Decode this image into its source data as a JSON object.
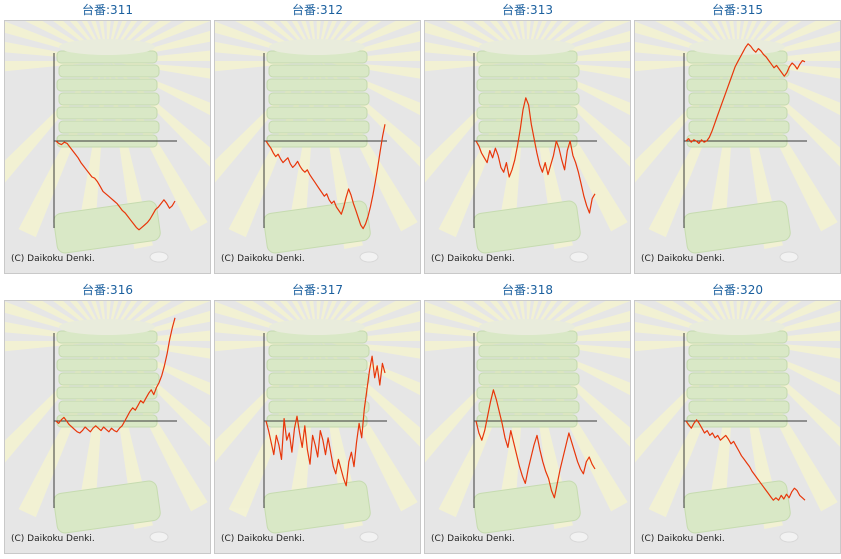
{
  "copyright": "(C) Daikoku Denki.",
  "colors": {
    "line": "#e8360a",
    "axis": "#3a3a3a",
    "title": "#1a5f9e",
    "background": "#e6e6e6"
  },
  "charts": [
    {
      "title": "台番:311"
    },
    {
      "title": "台番:312"
    },
    {
      "title": "台番:313"
    },
    {
      "title": "台番:315"
    },
    {
      "title": "台番:316"
    },
    {
      "title": "台番:317"
    },
    {
      "title": "台番:318"
    },
    {
      "title": "台番:320"
    }
  ],
  "chart_data": [
    {
      "type": "line",
      "title": "台番:311",
      "grid": false,
      "y": [
        0,
        -2,
        -3,
        -1,
        -2,
        -5,
        -8,
        -11,
        -14,
        -18,
        -21,
        -24,
        -27,
        -30,
        -31,
        -34,
        -38,
        -42,
        -44,
        -46,
        -48,
        -50,
        -52,
        -55,
        -58,
        -60,
        -63,
        -66,
        -69,
        -72,
        -74,
        -72,
        -70,
        -68,
        -65,
        -61,
        -57,
        -55,
        -52,
        -49,
        -52,
        -56,
        -54,
        -50
      ]
    },
    {
      "type": "line",
      "title": "台番:312",
      "grid": false,
      "y": [
        0,
        -3,
        -6,
        -10,
        -13,
        -11,
        -15,
        -18,
        -16,
        -14,
        -19,
        -22,
        -20,
        -17,
        -21,
        -24,
        -26,
        -24,
        -28,
        -31,
        -34,
        -37,
        -40,
        -43,
        -46,
        -44,
        -49,
        -52,
        -50,
        -55,
        -58,
        -61,
        -55,
        -47,
        -40,
        -45,
        -52,
        -58,
        -64,
        -70,
        -73,
        -69,
        -63,
        -55,
        -45,
        -34,
        -22,
        -9,
        4,
        14
      ]
    },
    {
      "type": "line",
      "title": "台番:313",
      "grid": false,
      "y": [
        0,
        -4,
        -10,
        -14,
        -18,
        -8,
        -14,
        -6,
        -12,
        -22,
        -26,
        -18,
        -30,
        -24,
        -16,
        -4,
        10,
        26,
        36,
        30,
        14,
        2,
        -10,
        -20,
        -26,
        -18,
        -28,
        -20,
        -12,
        0,
        -6,
        -16,
        -24,
        -8,
        0,
        -12,
        -18,
        -26,
        -36,
        -46,
        -54,
        -60,
        -48,
        -44
      ]
    },
    {
      "type": "line",
      "title": "台番:315",
      "grid": false,
      "y": [
        0,
        2,
        -1,
        1,
        0,
        -2,
        1,
        -1,
        0,
        3,
        8,
        14,
        20,
        26,
        32,
        38,
        44,
        50,
        56,
        62,
        66,
        70,
        74,
        78,
        81,
        79,
        76,
        74,
        77,
        75,
        72,
        70,
        67,
        64,
        61,
        63,
        60,
        57,
        54,
        57,
        62,
        65,
        63,
        60,
        64,
        67,
        66
      ]
    },
    {
      "type": "line",
      "title": "台番:316",
      "grid": false,
      "y": [
        0,
        -2,
        1,
        3,
        0,
        -3,
        -5,
        -7,
        -9,
        -10,
        -8,
        -5,
        -7,
        -9,
        -6,
        -4,
        -6,
        -8,
        -5,
        -7,
        -9,
        -6,
        -8,
        -9,
        -6,
        -4,
        0,
        4,
        8,
        11,
        9,
        13,
        17,
        15,
        19,
        23,
        26,
        22,
        28,
        32,
        38,
        46,
        56,
        68,
        78,
        86
      ]
    },
    {
      "type": "line",
      "title": "台番:317",
      "grid": false,
      "y": [
        0,
        -8,
        -18,
        -28,
        -12,
        -20,
        -32,
        2,
        -16,
        -10,
        -26,
        -6,
        4,
        -10,
        -22,
        -4,
        -24,
        -36,
        -12,
        -20,
        -30,
        -8,
        -16,
        -28,
        -14,
        -26,
        -38,
        -44,
        -32,
        -40,
        -48,
        -54,
        -34,
        -26,
        -38,
        -18,
        -2,
        -14,
        10,
        26,
        42,
        54,
        36,
        46,
        30,
        48,
        40
      ]
    },
    {
      "type": "line",
      "title": "台番:318",
      "grid": false,
      "y": [
        0,
        -10,
        -16,
        -8,
        4,
        16,
        26,
        18,
        8,
        -2,
        -14,
        -22,
        -8,
        -18,
        -28,
        -38,
        -46,
        -52,
        -40,
        -30,
        -20,
        -12,
        -24,
        -34,
        -42,
        -48,
        -58,
        -64,
        -52,
        -40,
        -30,
        -20,
        -10,
        -18,
        -26,
        -34,
        -40,
        -44,
        -34,
        -30,
        -36,
        -40
      ]
    },
    {
      "type": "line",
      "title": "台番:320",
      "grid": false,
      "y": [
        0,
        -3,
        -6,
        -2,
        1,
        -2,
        -6,
        -10,
        -8,
        -12,
        -10,
        -14,
        -12,
        -16,
        -14,
        -12,
        -15,
        -19,
        -17,
        -21,
        -25,
        -29,
        -32,
        -35,
        -38,
        -42,
        -45,
        -48,
        -51,
        -54,
        -57,
        -60,
        -63,
        -66,
        -64,
        -66,
        -62,
        -65,
        -61,
        -64,
        -59,
        -56,
        -58,
        -62,
        -64,
        -66
      ]
    }
  ]
}
